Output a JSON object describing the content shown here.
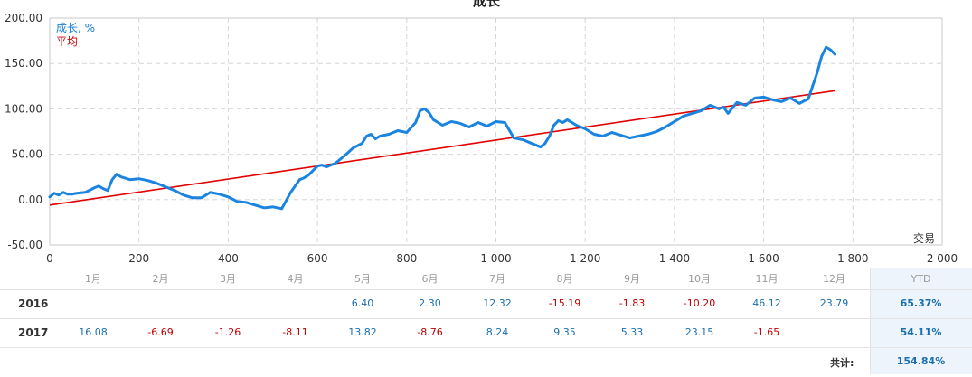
{
  "chart_data": {
    "type": "line",
    "title": "成长",
    "xlabel": "交易",
    "xlim": [
      0,
      2000
    ],
    "ylim": [
      -50,
      200
    ],
    "x_ticks": [
      0,
      200,
      400,
      600,
      800,
      1000,
      1200,
      1400,
      1600,
      1800,
      2000
    ],
    "x_tick_labels": [
      "0",
      "200",
      "400",
      "600",
      "800",
      "1 000",
      "1 200",
      "1 400",
      "1 600",
      "1 800",
      "2 000"
    ],
    "y_ticks": [
      -50,
      0,
      50,
      100,
      150,
      200
    ],
    "y_tick_labels": [
      "-50.00",
      "0.00",
      "50.00",
      "100.00",
      "150.00",
      "200.00"
    ],
    "grid": true,
    "legend_position": "top-left",
    "series": [
      {
        "name": "成长, %",
        "color": "#1a84e0",
        "x": [
          0,
          10,
          20,
          30,
          40,
          50,
          60,
          80,
          100,
          110,
          120,
          130,
          140,
          150,
          160,
          180,
          200,
          220,
          240,
          260,
          280,
          300,
          320,
          340,
          360,
          380,
          400,
          420,
          440,
          460,
          480,
          500,
          520,
          540,
          560,
          570,
          580,
          600,
          610,
          620,
          640,
          660,
          680,
          700,
          710,
          720,
          730,
          740,
          760,
          780,
          800,
          820,
          830,
          840,
          850,
          860,
          880,
          900,
          920,
          940,
          960,
          980,
          1000,
          1020,
          1040,
          1060,
          1080,
          1100,
          1110,
          1120,
          1130,
          1140,
          1150,
          1160,
          1180,
          1200,
          1220,
          1240,
          1260,
          1280,
          1300,
          1320,
          1340,
          1360,
          1380,
          1400,
          1420,
          1440,
          1460,
          1480,
          1500,
          1510,
          1520,
          1540,
          1560,
          1580,
          1600,
          1620,
          1640,
          1660,
          1680,
          1700,
          1720,
          1730,
          1740,
          1750,
          1760
        ],
        "y": [
          3,
          7,
          5,
          8,
          6,
          6,
          7,
          8,
          13,
          15,
          12,
          10,
          22,
          28,
          25,
          22,
          23,
          21,
          18,
          14,
          10,
          5,
          2,
          2,
          8,
          6,
          3,
          -2,
          -3,
          -6,
          -9,
          -8,
          -10,
          8,
          22,
          24,
          27,
          37,
          38,
          36,
          40,
          48,
          57,
          62,
          70,
          72,
          67,
          70,
          72,
          76,
          74,
          85,
          98,
          100,
          96,
          88,
          82,
          86,
          84,
          80,
          85,
          81,
          86,
          85,
          68,
          66,
          62,
          58,
          62,
          70,
          82,
          87,
          85,
          88,
          82,
          78,
          72,
          70,
          74,
          71,
          68,
          70,
          72,
          75,
          80,
          86,
          92,
          95,
          98,
          104,
          100,
          102,
          95,
          107,
          104,
          112,
          113,
          110,
          108,
          112,
          106,
          111,
          140,
          158,
          168,
          165,
          160
        ]
      },
      {
        "name": "平均",
        "color": "#e00000",
        "x": [
          0,
          1760
        ],
        "y": [
          -6,
          120
        ]
      }
    ]
  },
  "table": {
    "months": [
      "1月",
      "2月",
      "3月",
      "4月",
      "5月",
      "6月",
      "7月",
      "8月",
      "9月",
      "10月",
      "11月",
      "12月"
    ],
    "ytd_header": "YTD",
    "rows": [
      {
        "year": "2016",
        "values": [
          "",
          "",
          "",
          "",
          "6.40",
          "2.30",
          "12.32",
          "-15.19",
          "-1.83",
          "-10.20",
          "46.12",
          "23.79"
        ],
        "ytd": "65.37%"
      },
      {
        "year": "2017",
        "values": [
          "16.08",
          "-6.69",
          "-1.26",
          "-8.11",
          "13.82",
          "-8.76",
          "8.24",
          "9.35",
          "5.33",
          "23.15",
          "-1.65",
          ""
        ],
        "ytd": "54.11%"
      }
    ],
    "total_label": "共计:",
    "total_value": "154.84%"
  }
}
